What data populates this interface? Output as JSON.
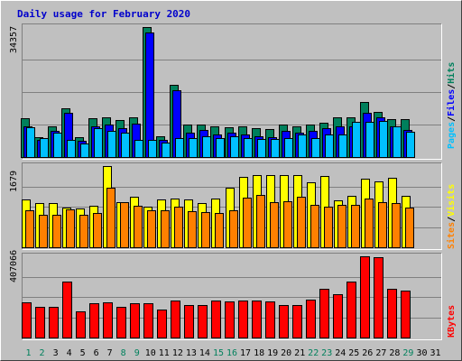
{
  "title": "Daily usage for February 2020",
  "colors": {
    "hits": "#00805c",
    "files": "#0000ff",
    "pages": "#00c0ff",
    "visits": "#ffff00",
    "sites": "#ff8000",
    "kbytes": "#ff0000",
    "weekend_day": "#00805c",
    "weekday": "#000000",
    "title": "#0000cc"
  },
  "side_labels": {
    "pages": "Pages",
    "files": "Files",
    "hits": "Hits",
    "visits": "Visits",
    "sites": "Sites",
    "kbytes": "KBytes",
    "sep": "/"
  },
  "chart_data": {
    "type": "bar",
    "title": "Daily usage for February 2020",
    "categories": [
      "1",
      "2",
      "3",
      "4",
      "5",
      "6",
      "7",
      "8",
      "9",
      "10",
      "11",
      "12",
      "13",
      "14",
      "15",
      "16",
      "17",
      "18",
      "19",
      "20",
      "21",
      "22",
      "23",
      "24",
      "25",
      "26",
      "27",
      "28",
      "29",
      "30",
      "31"
    ],
    "weekend_days": [
      "1",
      "2",
      "8",
      "9",
      "15",
      "16",
      "22",
      "23",
      "29"
    ],
    "panels": [
      {
        "id": "hits-files-pages",
        "max_label": "34357",
        "ylim": [
          0,
          34357
        ],
        "series": [
          {
            "name": "Hits",
            "key": "hits",
            "values": [
              10200,
              5200,
              8000,
              12800,
              5200,
              10200,
              10600,
              9800,
              10600,
              34357,
              5600,
              19000,
              8600,
              8700,
              8000,
              7800,
              8000,
              7600,
              7500,
              8600,
              8200,
              8600,
              9000,
              10500,
              10600,
              14500,
              12000,
              10000,
              10000,
              null,
              null
            ]
          },
          {
            "name": "Files",
            "key": "files",
            "values": [
              8000,
              4500,
              7000,
              11800,
              4200,
              8000,
              8600,
              7600,
              8800,
              33000,
              4500,
              17600,
              6500,
              7200,
              6000,
              6400,
              6000,
              5600,
              5200,
              7000,
              6400,
              7000,
              7600,
              8000,
              8200,
              11800,
              10600,
              8200,
              7200,
              null,
              null
            ]
          },
          {
            "name": "Pages",
            "key": "pages",
            "values": [
              7800,
              5000,
              6500,
              4500,
              3500,
              7600,
              7000,
              6500,
              4500,
              4500,
              3800,
              5000,
              5000,
              5500,
              5000,
              5500,
              5000,
              4800,
              4800,
              5000,
              6000,
              5000,
              6000,
              6000,
              9400,
              9200,
              9600,
              8100,
              6700,
              null,
              null
            ]
          }
        ]
      },
      {
        "id": "visits-sites",
        "max_label": "1679",
        "ylim": [
          0,
          1679
        ],
        "series": [
          {
            "name": "Visits",
            "key": "visits",
            "values": [
              980,
              910,
              910,
              820,
              800,
              860,
              1679,
              930,
              1050,
              840,
              990,
              1000,
              990,
              920,
              1000,
              1240,
              1460,
              1500,
              1490,
              1500,
              1500,
              1350,
              1480,
              970,
              1060,
              1420,
              1370,
              1430,
              1060,
              null,
              null
            ]
          },
          {
            "name": "Sites",
            "key": "sites",
            "values": [
              760,
              680,
              670,
              780,
              680,
              710,
              1240,
              940,
              850,
              760,
              770,
              840,
              750,
              720,
              710,
              760,
              1020,
              1080,
              940,
              960,
              1050,
              870,
              840,
              880,
              880,
              1010,
              930,
              920,
              820,
              null,
              null
            ]
          }
        ]
      },
      {
        "id": "kbytes",
        "max_label": "407066",
        "ylim": [
          0,
          407066
        ],
        "series": [
          {
            "name": "KBytes",
            "key": "kbytes",
            "values": [
              178000,
              156000,
              156000,
              280000,
              130000,
              172000,
              178000,
              154000,
              174000,
              172000,
              138000,
              184000,
              162000,
              162000,
              184000,
              180000,
              184000,
              184000,
              182000,
              164000,
              164000,
              192000,
              242000,
              216000,
              282000,
              407066,
              403000,
              244000,
              236000,
              null,
              null
            ]
          }
        ]
      }
    ]
  }
}
